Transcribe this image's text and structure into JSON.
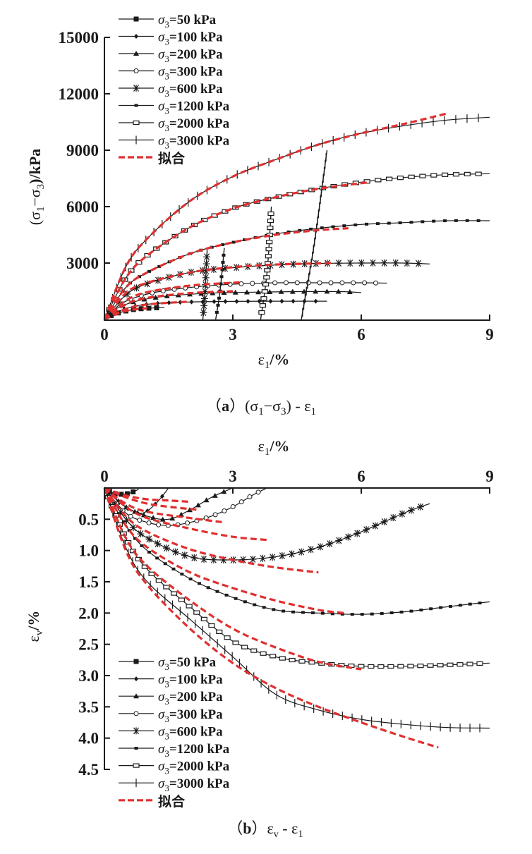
{
  "chart_data": [
    {
      "id": "a",
      "type": "line",
      "caption": "（a）(σ1−σ3) - ε1",
      "caption_parts": {
        "letter": "a",
        "expr_main": "(σ",
        "s1": "1",
        "dash": "−σ",
        "s3": "3",
        "tail": ") - ε",
        "s1b": "1"
      },
      "xlabel": "ε1/%",
      "xlabel_parts": {
        "base": "ε",
        "sub": "1",
        "unit": "/%"
      },
      "ylabel": "(σ1−σ3)/kPa",
      "ylabel_parts": {
        "open": "(σ",
        "s1": "1",
        "mid": "−σ",
        "s3": "3",
        "close": ")/kPa"
      },
      "xlim": [
        0,
        9
      ],
      "ylim": [
        0,
        15000
      ],
      "xticks": [
        "0",
        "3",
        "6",
        "9"
      ],
      "yticks": [
        "3000",
        "6000",
        "9000",
        "12000",
        "15000"
      ],
      "ytick_values": [
        3000,
        6000,
        9000,
        12000,
        15000
      ],
      "xtick_values": [
        0,
        3,
        6,
        9
      ],
      "legend_position": "top-left",
      "series": [
        {
          "name": "σ3=50 kPa",
          "marker": "square",
          "x": [
            0,
            0.2,
            0.5,
            0.8,
            1.2,
            1.4
          ],
          "y": [
            0,
            250,
            450,
            560,
            620,
            630
          ]
        },
        {
          "name": "σ3=100 kPa",
          "marker": "diamond",
          "x": [
            0,
            0.3,
            0.7,
            1.2,
            2,
            3,
            4,
            5.2
          ],
          "y": [
            0,
            400,
            700,
            850,
            930,
            960,
            970,
            970
          ]
        },
        {
          "name": "σ3=200 kPa",
          "marker": "triangle",
          "x": [
            0,
            0.3,
            0.8,
            1.5,
            2.5,
            3.5,
            4.5,
            5.5,
            6
          ],
          "y": [
            0,
            600,
            1000,
            1250,
            1400,
            1450,
            1480,
            1480,
            1430
          ]
        },
        {
          "name": "σ3=300 kPa",
          "marker": "circle",
          "x": [
            0,
            0.4,
            1,
            1.8,
            2.8,
            4,
            5,
            6,
            6.6
          ],
          "y": [
            0,
            850,
            1350,
            1650,
            1850,
            1950,
            1950,
            1950,
            1930
          ]
        },
        {
          "name": "σ3=600 kPa",
          "marker": "asterisk",
          "x": [
            0,
            0.5,
            1,
            2,
            3,
            4,
            5,
            6,
            7,
            7.6
          ],
          "y": [
            0,
            1300,
            1900,
            2500,
            2750,
            2900,
            2980,
            3000,
            3000,
            2950
          ]
        },
        {
          "name": "σ3=1200 kPa",
          "marker": "small-square",
          "x": [
            0,
            0.5,
            1,
            2,
            3,
            4,
            5,
            6,
            7,
            8,
            9
          ],
          "y": [
            0,
            1700,
            2500,
            3500,
            4100,
            4550,
            4850,
            5050,
            5150,
            5250,
            5250
          ]
        },
        {
          "name": "σ3=2000 kPa",
          "marker": "rect",
          "x": [
            0,
            0.5,
            1,
            2,
            3,
            4,
            5,
            6,
            7,
            8,
            9
          ],
          "y": [
            0,
            2200,
            3400,
            4900,
            5900,
            6500,
            6950,
            7300,
            7550,
            7700,
            7750
          ]
        },
        {
          "name": "σ3=3000 kPa",
          "marker": "plus",
          "x": [
            0,
            0.5,
            1,
            2,
            3,
            4,
            5,
            6,
            7,
            8,
            9
          ],
          "y": [
            0,
            2800,
            4300,
            6300,
            7600,
            8500,
            9300,
            9900,
            10300,
            10600,
            10750
          ]
        }
      ],
      "unloading_branches": [
        {
          "name": "σ3=1200 kPa",
          "x": [
            2.8,
            2.7,
            2.6
          ],
          "y": [
            3800,
            1500,
            0
          ]
        },
        {
          "name": "σ3=2000 kPa",
          "x": [
            3.9,
            3.8,
            3.65
          ],
          "y": [
            6000,
            2500,
            0
          ]
        },
        {
          "name": "σ3=3000 kPa",
          "x": [
            5.2,
            4.9,
            4.6
          ],
          "y": [
            9000,
            4000,
            0
          ]
        },
        {
          "name": "σ3=600 kPa",
          "x": [
            2.4,
            2.35,
            2.3
          ],
          "y": [
            3700,
            1500,
            0
          ]
        }
      ],
      "fit": {
        "name": "拟合",
        "curves": [
          {
            "x": [
              0,
              0.3,
              0.6,
              1.0
            ],
            "y": [
              0,
              300,
              500,
              600
            ]
          },
          {
            "x": [
              0,
              0.5,
              1,
              2
            ],
            "y": [
              0,
              550,
              800,
              950
            ]
          },
          {
            "x": [
              0,
              0.5,
              1,
              2,
              3
            ],
            "y": [
              0,
              800,
              1150,
              1400,
              1500
            ]
          },
          {
            "x": [
              0,
              0.5,
              1,
              2,
              3,
              3.2
            ],
            "y": [
              0,
              1000,
              1450,
              1800,
              1950,
              1980
            ]
          },
          {
            "x": [
              0,
              0.5,
              1,
              2,
              3,
              4,
              5.3
            ],
            "y": [
              0,
              1400,
              1950,
              2500,
              2780,
              2920,
              3000
            ]
          },
          {
            "x": [
              0,
              0.5,
              1,
              2,
              3,
              4,
              5,
              5.7
            ],
            "y": [
              0,
              1700,
              2500,
              3500,
              4100,
              4500,
              4750,
              4850
            ]
          },
          {
            "x": [
              0,
              0.5,
              1,
              2,
              3,
              4,
              5,
              6.2
            ],
            "y": [
              0,
              2200,
              3400,
              4900,
              5900,
              6500,
              6950,
              7300
            ]
          },
          {
            "x": [
              0,
              0.5,
              1,
              2,
              3,
              4,
              5,
              6,
              7,
              8
            ],
            "y": [
              0,
              2800,
              4300,
              6300,
              7600,
              8500,
              9300,
              9900,
              10400,
              10950
            ]
          }
        ]
      }
    },
    {
      "id": "b",
      "type": "line",
      "caption": "（b）εv - ε1",
      "caption_parts": {
        "letter": "b",
        "base": "ε",
        "sv": "v",
        "dash": " - ε",
        "s1": "1"
      },
      "xlabel": "ε1/%",
      "xlabel_parts": {
        "base": "ε",
        "sub": "1",
        "unit": "/%"
      },
      "ylabel": "εv/%",
      "ylabel_parts": {
        "base": "ε",
        "sub": "v",
        "unit": "/%"
      },
      "xlim": [
        0,
        9
      ],
      "ylim": [
        0,
        4.5
      ],
      "y_inverted": true,
      "x_axis_position": "top",
      "xticks": [
        "0",
        "3",
        "6",
        "9"
      ],
      "xtick_values": [
        0,
        3,
        6,
        9
      ],
      "yticks": [
        "0.5",
        "1.0",
        "1.5",
        "2.0",
        "2.5",
        "3.0",
        "3.5",
        "4.0",
        "4.5"
      ],
      "ytick_values": [
        0.5,
        1.0,
        1.5,
        2.0,
        2.5,
        3.0,
        3.5,
        4.0,
        4.5
      ],
      "legend_position": "bottom-left",
      "series": [
        {
          "name": "σ3=50 kPa",
          "marker": "square",
          "x": [
            0,
            0.2,
            0.4,
            0.6,
            0.8
          ],
          "y": [
            0,
            0.08,
            0.1,
            0.08,
            0.02
          ]
        },
        {
          "name": "σ3=100 kPa",
          "marker": "diamond",
          "x": [
            0,
            0.3,
            0.6,
            0.9,
            1.2,
            1.5
          ],
          "y": [
            0,
            0.2,
            0.35,
            0.4,
            0.25,
            0.0
          ]
        },
        {
          "name": "σ3=200 kPa",
          "marker": "triangle",
          "x": [
            0,
            0.5,
            1,
            1.5,
            2,
            2.5,
            3
          ],
          "y": [
            0,
            0.3,
            0.45,
            0.5,
            0.35,
            0.15,
            0.0
          ]
        },
        {
          "name": "σ3=300 kPa",
          "marker": "circle",
          "x": [
            0,
            0.5,
            1,
            1.5,
            2,
            2.5,
            3,
            3.5,
            3.8
          ],
          "y": [
            0,
            0.4,
            0.55,
            0.6,
            0.55,
            0.45,
            0.3,
            0.1,
            0.0
          ]
        },
        {
          "name": "σ3=600 kPa",
          "marker": "asterisk",
          "x": [
            0,
            0.5,
            1,
            2,
            3,
            4,
            5,
            6,
            7,
            7.6
          ],
          "y": [
            0,
            0.5,
            0.8,
            1.1,
            1.15,
            1.1,
            0.95,
            0.7,
            0.4,
            0.25
          ]
        },
        {
          "name": "σ3=1200 kPa",
          "marker": "small-square",
          "x": [
            0,
            0.5,
            1,
            2,
            3,
            4,
            5,
            6,
            7,
            8,
            9
          ],
          "y": [
            0,
            0.6,
            1.0,
            1.45,
            1.75,
            1.95,
            2.0,
            2.02,
            1.98,
            1.9,
            1.82
          ]
        },
        {
          "name": "σ3=2000 kPa",
          "marker": "rect",
          "x": [
            0,
            0.5,
            1,
            2,
            3,
            4,
            5,
            6,
            7,
            8,
            9
          ],
          "y": [
            0,
            0.8,
            1.3,
            1.9,
            2.45,
            2.7,
            2.8,
            2.85,
            2.85,
            2.83,
            2.8
          ]
        },
        {
          "name": "σ3=3000 kPa",
          "marker": "plus",
          "x": [
            0,
            0.5,
            1,
            2,
            3,
            4,
            5,
            6,
            7,
            8,
            9
          ],
          "y": [
            0,
            0.95,
            1.5,
            2.1,
            2.7,
            3.3,
            3.55,
            3.7,
            3.78,
            3.83,
            3.84
          ]
        }
      ],
      "fit": {
        "name": "拟合",
        "curves": [
          {
            "x": [
              0,
              0.5,
              1,
              1.5,
              2
            ],
            "y": [
              0,
              0.12,
              0.18,
              0.2,
              0.22
            ]
          },
          {
            "x": [
              0,
              0.5,
              1,
              1.5,
              2.2
            ],
            "y": [
              0,
              0.15,
              0.25,
              0.3,
              0.35
            ]
          },
          {
            "x": [
              0,
              0.5,
              1,
              2,
              2.8
            ],
            "y": [
              0,
              0.25,
              0.38,
              0.48,
              0.55
            ]
          },
          {
            "x": [
              0,
              0.5,
              1,
              2,
              3,
              3.8
            ],
            "y": [
              0,
              0.3,
              0.48,
              0.65,
              0.78,
              0.83
            ]
          },
          {
            "x": [
              0,
              0.5,
              1,
              2,
              3,
              4,
              5
            ],
            "y": [
              0,
              0.45,
              0.7,
              0.98,
              1.15,
              1.27,
              1.35
            ]
          },
          {
            "x": [
              0,
              0.5,
              1,
              2,
              3,
              4,
              5,
              5.6
            ],
            "y": [
              0,
              0.6,
              0.95,
              1.35,
              1.6,
              1.8,
              1.95,
              2.0
            ]
          },
          {
            "x": [
              0,
              0.5,
              1,
              2,
              3,
              4,
              5,
              6
            ],
            "y": [
              0,
              0.8,
              1.25,
              1.8,
              2.25,
              2.55,
              2.78,
              2.9
            ]
          },
          {
            "x": [
              0,
              0.5,
              1,
              2,
              3,
              4,
              5,
              6,
              7,
              7.8
            ],
            "y": [
              0,
              1.0,
              1.55,
              2.25,
              2.8,
              3.2,
              3.5,
              3.75,
              3.98,
              4.15
            ]
          }
        ]
      }
    }
  ],
  "colors": {
    "data": "#1a1a1a",
    "fit": "#e03030",
    "axis": "#1a1a1a"
  },
  "legend_fit_label": "拟合"
}
